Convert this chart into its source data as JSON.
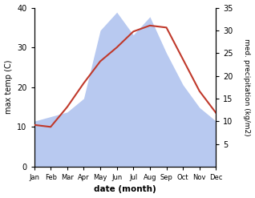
{
  "months": [
    "Jan",
    "Feb",
    "Mar",
    "Apr",
    "May",
    "Jun",
    "Jul",
    "Aug",
    "Sep",
    "Oct",
    "Nov",
    "Dec"
  ],
  "temp": [
    10.5,
    10.0,
    15.0,
    21.0,
    26.5,
    30.0,
    34.0,
    35.5,
    35.0,
    27.0,
    19.0,
    13.5
  ],
  "precip": [
    10.0,
    11.0,
    12.0,
    15.0,
    30.0,
    34.0,
    29.0,
    33.0,
    25.0,
    18.0,
    13.0,
    10.0
  ],
  "temp_color": "#c0392b",
  "precip_color": "#b8c9f0",
  "left_ylim": [
    0,
    40
  ],
  "right_ylim": [
    0,
    35
  ],
  "left_yticks": [
    0,
    10,
    20,
    30,
    40
  ],
  "right_yticks": [
    5,
    10,
    15,
    20,
    25,
    30,
    35
  ],
  "xlabel": "date (month)",
  "ylabel_left": "max temp (C)",
  "ylabel_right": "med. precipitation (kg/m2)",
  "background_color": "#ffffff"
}
